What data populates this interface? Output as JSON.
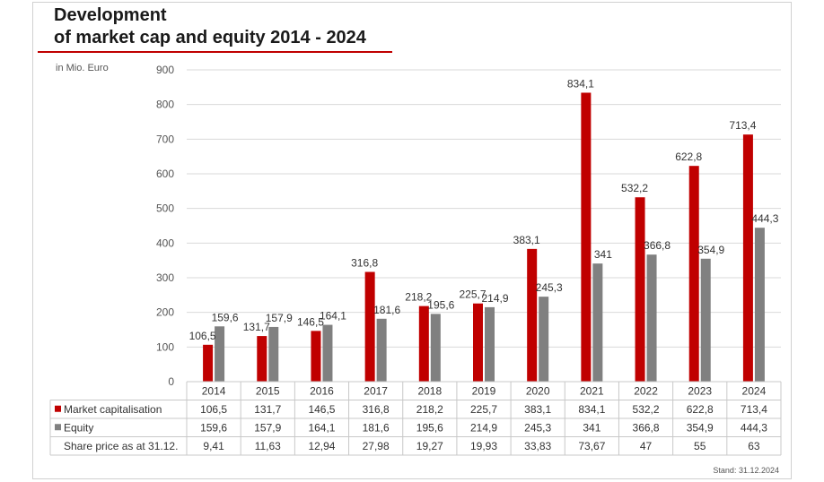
{
  "title_line1": "Development",
  "title_line2": "of market cap and equity 2014 - 2024",
  "unit_label": "in Mio. Euro",
  "stand": "Stand: 31.12.2024",
  "colors": {
    "market": "#c00000",
    "equity": "#808080",
    "accent": "#c00000"
  },
  "chart_data": {
    "type": "bar",
    "title": "Development of market cap and equity 2014 - 2024",
    "ylabel": "in Mio. Euro",
    "ylim": [
      0,
      900
    ],
    "yticks": [
      0,
      100,
      200,
      300,
      400,
      500,
      600,
      700,
      800,
      900
    ],
    "grid": true,
    "categories": [
      "2014",
      "2015",
      "2016",
      "2017",
      "2018",
      "2019",
      "2020",
      "2021",
      "2022",
      "2023",
      "2024"
    ],
    "series": [
      {
        "name": "Market capitalisation",
        "values": [
          106.5,
          131.7,
          146.5,
          316.8,
          218.2,
          225.7,
          383.1,
          834.1,
          532.2,
          622.8,
          713.4
        ],
        "labels": [
          "106,5",
          "131,7",
          "146,5",
          "316,8",
          "218,2",
          "225,7",
          "383,1",
          "834,1",
          "532,2",
          "622,8",
          "713,4"
        ]
      },
      {
        "name": "Equity",
        "values": [
          159.6,
          157.9,
          164.1,
          181.6,
          195.6,
          214.9,
          245.3,
          341,
          366.8,
          354.9,
          444.3
        ],
        "labels": [
          "159,6",
          "157,9",
          "164,1",
          "181,6",
          "195,6",
          "214,9",
          "245,3",
          "341",
          "366,8",
          "354,9",
          "444,3"
        ]
      }
    ],
    "table_extra_row": {
      "name": "Share price as at 31.12.",
      "values": [
        "9,41",
        "11,63",
        "12,94",
        "27,98",
        "19,27",
        "19,93",
        "33,83",
        "73,67",
        "47",
        "55",
        "63"
      ]
    }
  }
}
